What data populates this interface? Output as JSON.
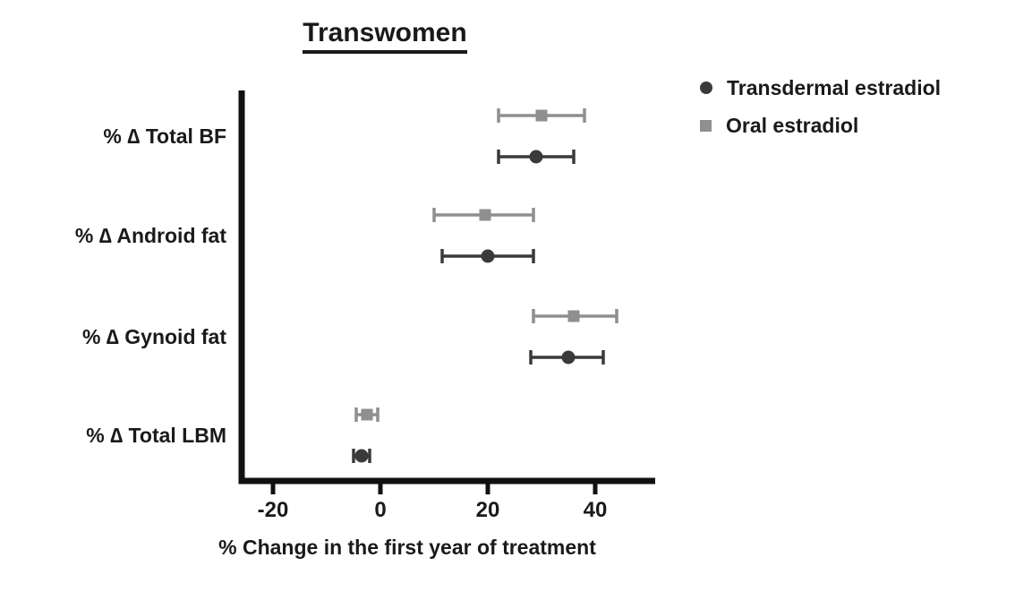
{
  "chart_data": {
    "type": "scatter",
    "subtype": "horizontal-forest-plot-with-error-bars",
    "title": "Transwomen",
    "xlabel": "% Change in the first year of treatment",
    "categories": [
      "% ∆ Total BF",
      "% ∆ Android fat",
      "% ∆ Gynoid fat",
      "% ∆ Total LBM"
    ],
    "xticks": [
      -20,
      0,
      20,
      40
    ],
    "xlim": [
      -26,
      51
    ],
    "grid": false,
    "legend_position": "top-right",
    "series": [
      {
        "name": "Transdermal estradiol",
        "marker": "circle",
        "color": "#3a3a3a",
        "values": [
          29,
          20,
          35,
          -3.5
        ],
        "ci_low": [
          22,
          11.5,
          28,
          -5
        ],
        "ci_high": [
          36,
          28.5,
          41.5,
          -2
        ]
      },
      {
        "name": "Oral estradiol",
        "marker": "square",
        "color": "#8f8f8f",
        "values": [
          30,
          19.5,
          36,
          -2.5
        ],
        "ci_low": [
          22,
          10,
          28.5,
          -4.5
        ],
        "ci_high": [
          38,
          28.5,
          44,
          -0.5
        ]
      }
    ]
  }
}
